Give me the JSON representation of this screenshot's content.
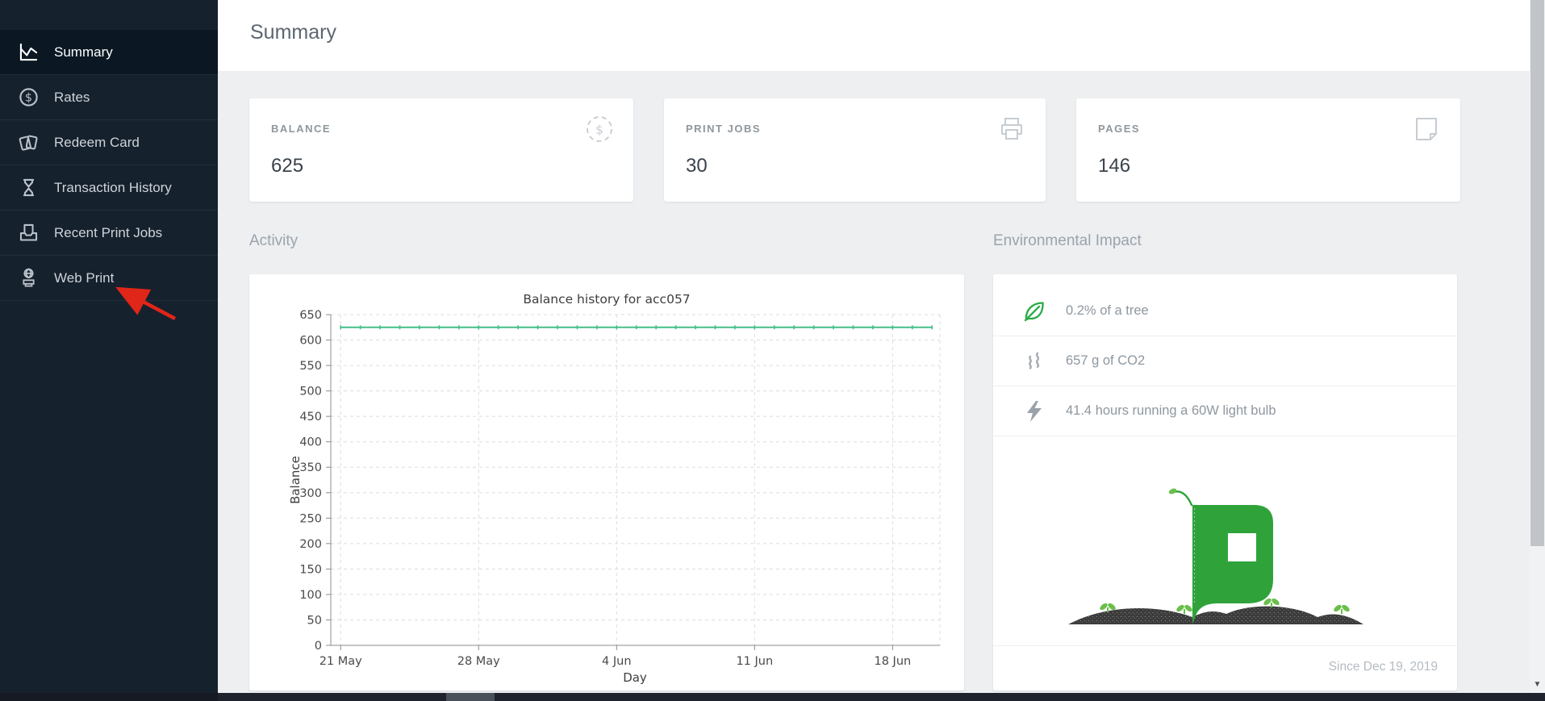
{
  "sidebar": {
    "items": [
      {
        "label": "Summary",
        "icon": "line-chart-icon",
        "active": true
      },
      {
        "label": "Rates",
        "icon": "dollar-circle-icon",
        "active": false
      },
      {
        "label": "Redeem Card",
        "icon": "cards-icon",
        "active": false
      },
      {
        "label": "Transaction History",
        "icon": "hourglass-icon",
        "active": false
      },
      {
        "label": "Recent Print Jobs",
        "icon": "inbox-document-icon",
        "active": false
      },
      {
        "label": "Web Print",
        "icon": "globe-printer-icon",
        "active": false
      }
    ]
  },
  "header": {
    "title": "Summary"
  },
  "stats": [
    {
      "label": "BALANCE",
      "value": "625",
      "icon": "dashed-coin-icon"
    },
    {
      "label": "PRINT JOBS",
      "value": "30",
      "icon": "printer-icon"
    },
    {
      "label": "PAGES",
      "value": "146",
      "icon": "page-icon"
    }
  ],
  "activity": {
    "heading": "Activity"
  },
  "environmental": {
    "heading": "Environmental Impact",
    "rows": [
      {
        "icon": "leaf-icon",
        "text": "0.2% of a tree"
      },
      {
        "icon": "co2-icon",
        "text": "657 g of CO2"
      },
      {
        "icon": "bolt-icon",
        "text": "41.4 hours running a 60W light bulb"
      }
    ],
    "since": "Since Dec 19, 2019"
  },
  "chart_data": {
    "type": "line",
    "title": "Balance history for acc057",
    "xlabel": "Day",
    "ylabel": "Balance",
    "ylim": [
      0,
      650
    ],
    "ytick_step": 50,
    "x_axis_days_range": [
      -0.5,
      30.4
    ],
    "x_ticks": [
      {
        "label": "21 May",
        "day": 0
      },
      {
        "label": "28 May",
        "day": 7
      },
      {
        "label": "4 Jun",
        "day": 14
      },
      {
        "label": "11 Jun",
        "day": 21
      },
      {
        "label": "18 Jun",
        "day": 28
      }
    ],
    "series": [
      {
        "name": "Balance",
        "color": "#45bf8a",
        "value": 625,
        "day_start": 0,
        "day_end": 30
      }
    ],
    "grid": {
      "dashed": true,
      "color": "#dcdcdc",
      "legend": "none"
    }
  },
  "annotation": {
    "type": "red-arrow",
    "color": "#e02618",
    "target": "Web Print"
  },
  "colors": {
    "sidebar_bg": "#16212e",
    "sidebar_active_bg": "#0b1723",
    "accent_green": "#2fa33a",
    "line_green": "#45bf8a",
    "page_bg": "#edeff1"
  }
}
